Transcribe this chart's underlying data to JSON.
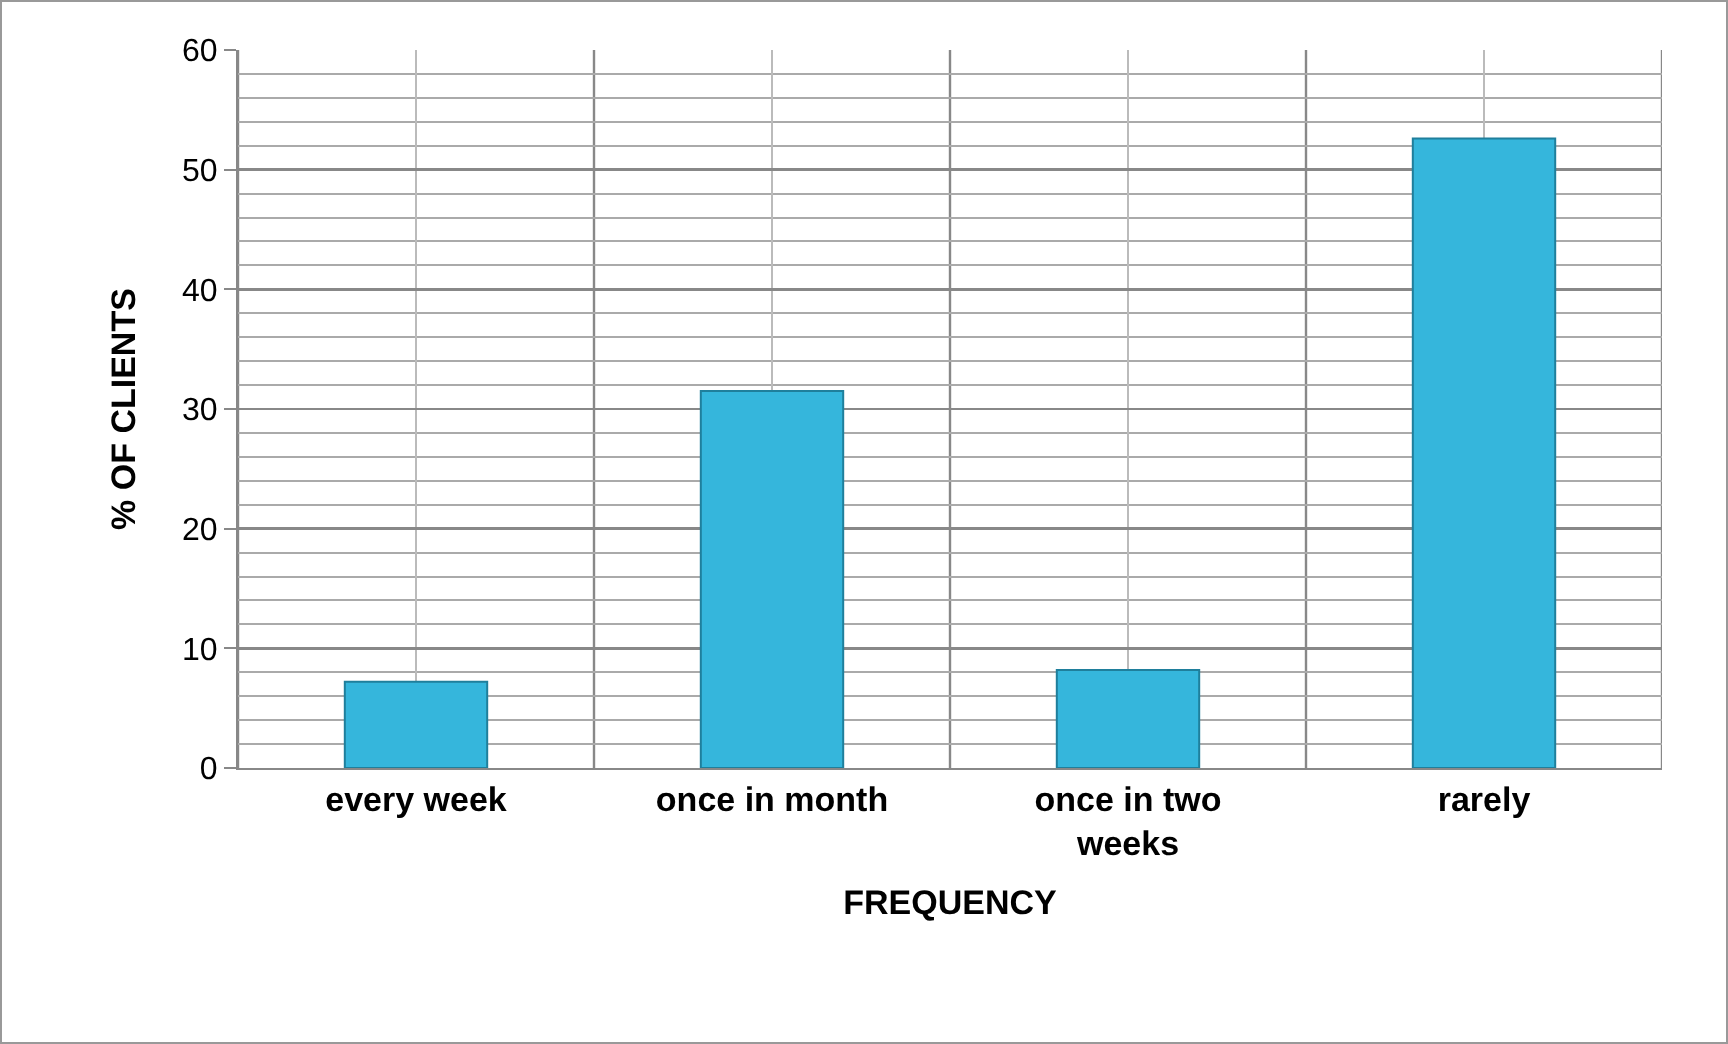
{
  "chart_data": {
    "type": "bar",
    "xlabel": "FREQUENCY",
    "ylabel": "% OF CLIENTS",
    "categories": [
      "every week",
      "once in month",
      "once in two weeks",
      "rarely"
    ],
    "values": [
      7.2,
      31.5,
      8.2,
      52.6
    ],
    "color": "#35b6dc",
    "ylim": [
      0,
      60
    ],
    "yticks": [
      0,
      10,
      20,
      30,
      40,
      50,
      60
    ],
    "grid": true
  }
}
